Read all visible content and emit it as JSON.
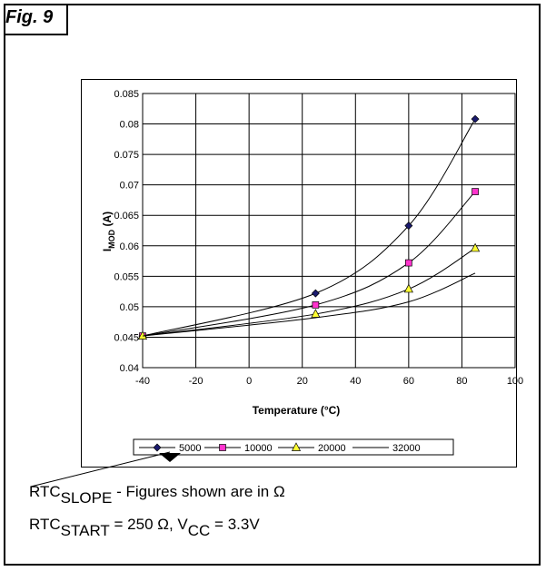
{
  "figure_label": "Fig. 9",
  "notes": {
    "line1_main": "RTC",
    "line1_sub": "SLOPE",
    "line1_rest": " - Figures shown are in Ω",
    "line2_main1": "RTC",
    "line2_sub1": "START",
    "line2_mid": " = 250 Ω, V",
    "line2_sub2": "CC",
    "line2_end": " = 3.3V"
  },
  "chart_data": {
    "type": "line",
    "title": "",
    "xlabel": "Temperature (°C)",
    "ylabel_main": "I",
    "ylabel_sub": "MOD",
    "ylabel_unit": " (A)",
    "xlim": [
      -40,
      100
    ],
    "ylim": [
      0.04,
      0.085
    ],
    "x_ticks": [
      "-40",
      "-20",
      "0",
      "20",
      "40",
      "60",
      "80",
      "100"
    ],
    "y_ticks": [
      "0.04",
      "0.045",
      "0.05",
      "0.055",
      "0.06",
      "0.065",
      "0.07",
      "0.075",
      "0.08",
      "0.085"
    ],
    "grid": true,
    "legend_position": "bottom",
    "series": [
      {
        "name": "5000",
        "marker": "diamond",
        "color": "#1a1a6e",
        "x": [
          -40,
          25,
          60,
          85
        ],
        "y": [
          0.0452,
          0.0522,
          0.0633,
          0.0808
        ]
      },
      {
        "name": "10000",
        "marker": "square",
        "color": "#ff33cc",
        "x": [
          -40,
          25,
          60,
          85
        ],
        "y": [
          0.0452,
          0.0503,
          0.0572,
          0.0689
        ]
      },
      {
        "name": "20000",
        "marker": "triangle",
        "color": "#ffff33",
        "x": [
          -40,
          25,
          60,
          85
        ],
        "y": [
          0.0452,
          0.0488,
          0.0529,
          0.0596
        ]
      },
      {
        "name": "32000",
        "marker": "none",
        "color": "#000000",
        "x": [
          -40,
          25,
          60,
          85
        ],
        "y": [
          0.0452,
          0.0482,
          0.0508,
          0.0555
        ]
      }
    ]
  }
}
